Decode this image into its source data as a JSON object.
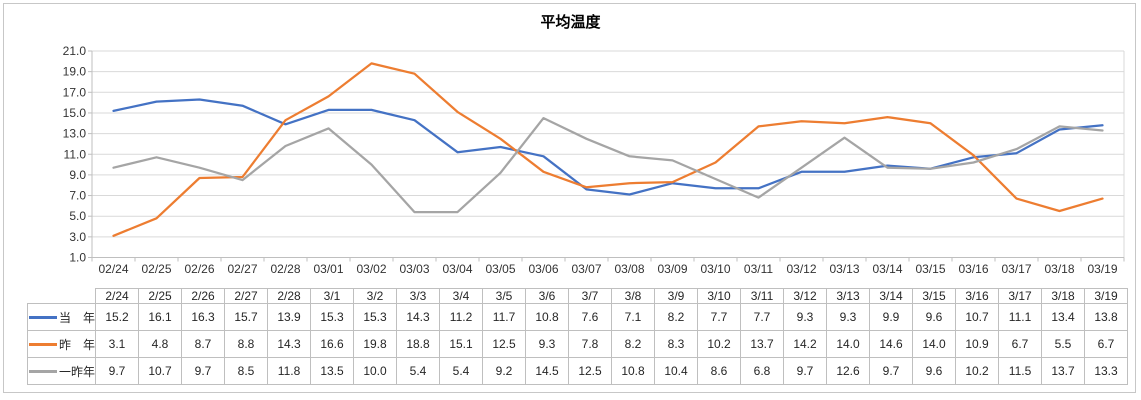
{
  "title": "平均温度",
  "colors": {
    "series_current": "#4472C4",
    "series_last_year": "#ED7D31",
    "series_two_years_ago": "#A5A5A5",
    "gridline": "#D9D9D9",
    "axis_line": "#BFBFBF",
    "table_border": "#BFBFBF",
    "tick_text": "#333333",
    "title_text": "#000000"
  },
  "chart_data": {
    "type": "line",
    "title": "平均温度",
    "xlabel": "",
    "ylabel": "",
    "ylim": [
      1.0,
      21.0
    ],
    "y_ticks": [
      21.0,
      19.0,
      17.0,
      15.0,
      13.0,
      11.0,
      9.0,
      7.0,
      5.0,
      3.0,
      1.0
    ],
    "grid": "horizontal",
    "legend_position": "data-table-left",
    "x_tick_labels": [
      "02/24",
      "02/25",
      "02/26",
      "02/27",
      "02/28",
      "03/01",
      "03/02",
      "03/03",
      "03/04",
      "03/05",
      "03/06",
      "03/07",
      "03/08",
      "03/09",
      "03/10",
      "03/11",
      "03/12",
      "03/13",
      "03/14",
      "03/15",
      "03/16",
      "03/17",
      "03/18",
      "03/19"
    ],
    "table_column_labels": [
      "2/24",
      "2/25",
      "2/26",
      "2/27",
      "2/28",
      "3/1",
      "3/2",
      "3/3",
      "3/4",
      "3/5",
      "3/6",
      "3/7",
      "3/8",
      "3/9",
      "3/10",
      "3/11",
      "3/12",
      "3/13",
      "3/14",
      "3/15",
      "3/16",
      "3/17",
      "3/18",
      "3/19"
    ],
    "series": [
      {
        "name": "当　年",
        "color": "#4472C4",
        "values": [
          15.2,
          16.1,
          16.3,
          15.7,
          13.9,
          15.3,
          15.3,
          14.3,
          11.2,
          11.7,
          10.8,
          7.6,
          7.1,
          8.2,
          7.7,
          7.7,
          9.3,
          9.3,
          9.9,
          9.6,
          10.7,
          11.1,
          13.4,
          13.8
        ]
      },
      {
        "name": "昨　年",
        "color": "#ED7D31",
        "values": [
          3.1,
          4.8,
          8.7,
          8.8,
          14.3,
          16.6,
          19.8,
          18.8,
          15.1,
          12.5,
          9.3,
          7.8,
          8.2,
          8.3,
          10.2,
          13.7,
          14.2,
          14.0,
          14.6,
          14.0,
          10.9,
          6.7,
          5.5,
          6.7
        ]
      },
      {
        "name": "一昨年",
        "color": "#A5A5A5",
        "values": [
          9.7,
          10.7,
          9.7,
          8.5,
          11.8,
          13.5,
          10.0,
          5.4,
          5.4,
          9.2,
          14.5,
          12.5,
          10.8,
          10.4,
          8.6,
          6.8,
          9.7,
          12.6,
          9.7,
          9.6,
          10.2,
          11.5,
          13.7,
          13.3
        ]
      }
    ]
  }
}
